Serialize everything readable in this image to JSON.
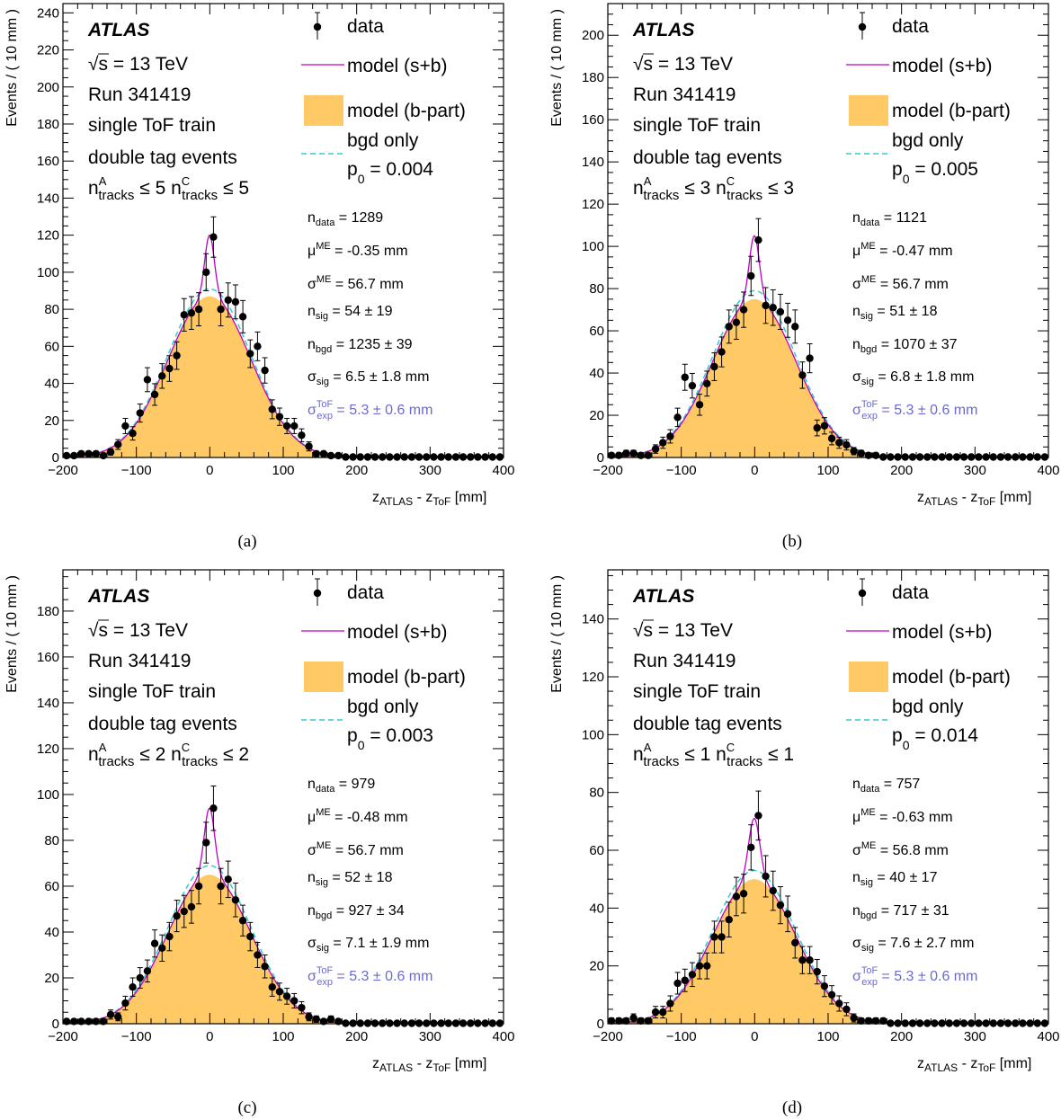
{
  "labels": {
    "atlas": "ATLAS",
    "energy_sqrt": "√",
    "energy_rest": "s = 13 TeV",
    "run": "Run 341419",
    "train": "single ToF train",
    "tag": "double tag events",
    "ylabel": "Events / ( 10 mm )",
    "xlabel_z1": "z",
    "xlabel_sub1": "ATLAS",
    "xlabel_mid": " - z",
    "xlabel_sub2": "ToF",
    "xlabel_unit": " [mm]",
    "legend_data": "data",
    "legend_sb": "model (s+b)",
    "legend_bpart": "model (b-part)",
    "legend_bgd": "bgd only",
    "p0_sym": "p",
    "p0_sub": "0",
    "ntrk_n": "n",
    "ntrk_supA": "A",
    "ntrk_supC": "C",
    "ntrk_sub": "tracks",
    "leq": "≤",
    "n_sym": "n",
    "mu_sym": "μ",
    "sigma_sym": "σ",
    "sub_data": "data",
    "sup_me": "ME",
    "sub_sig": "sig",
    "sub_bgd": "bgd",
    "sup_tof": "ToF",
    "sub_exp": "exp",
    "eq": "=",
    "pm": "±",
    "mm": "mm"
  },
  "colors": {
    "fill_bpart": "#ffc966",
    "line_sb": "#c000c0",
    "line_bgd": "#33cccc",
    "tof_text": "#6a6ad2"
  },
  "chart_data": [
    {
      "type": "scatter",
      "caption": "(a)",
      "xlim": [
        -200,
        400
      ],
      "ylim": [
        0,
        245
      ],
      "yticks": [
        0,
        20,
        40,
        60,
        80,
        100,
        120,
        140,
        160,
        180,
        200,
        220,
        240
      ],
      "xticks": [
        -200,
        -100,
        0,
        100,
        200,
        300,
        400
      ],
      "n_tracks": "5",
      "p0": "0.004",
      "stats": {
        "n_data": "1289",
        "mu_me": "-0.35",
        "sigma_me": "56.7",
        "n_sig": "54",
        "n_sig_err": "19",
        "n_bgd": "1235",
        "n_bgd_err": "39",
        "sigma_sig": "6.5",
        "sigma_sig_err": "1.8",
        "sigma_tof": "5.3",
        "sigma_tof_err": "0.6"
      },
      "model": {
        "mu": -0.35,
        "bgd_sigma": 56.7,
        "bgd_amp": 87,
        "sig_sigma": 6.5,
        "sig_amp": 33,
        "bgd_only_amp": 91
      },
      "points": [
        [
          -195,
          1
        ],
        [
          -185,
          1
        ],
        [
          -175,
          2
        ],
        [
          -165,
          2
        ],
        [
          -155,
          2
        ],
        [
          -145,
          1
        ],
        [
          -135,
          3
        ],
        [
          -125,
          7
        ],
        [
          -115,
          17
        ],
        [
          -105,
          13
        ],
        [
          -95,
          24
        ],
        [
          -85,
          42
        ],
        [
          -75,
          34
        ],
        [
          -65,
          44
        ],
        [
          -55,
          48
        ],
        [
          -45,
          55
        ],
        [
          -35,
          77
        ],
        [
          -25,
          78
        ],
        [
          -15,
          80
        ],
        [
          -5,
          100
        ],
        [
          5,
          119
        ],
        [
          15,
          80
        ],
        [
          25,
          85
        ],
        [
          35,
          84
        ],
        [
          45,
          76
        ],
        [
          55,
          56
        ],
        [
          65,
          60
        ],
        [
          75,
          47
        ],
        [
          85,
          26
        ],
        [
          95,
          22
        ],
        [
          105,
          17
        ],
        [
          115,
          17
        ],
        [
          125,
          12
        ],
        [
          135,
          6
        ],
        [
          145,
          2
        ],
        [
          155,
          2
        ],
        [
          165,
          1
        ],
        [
          175,
          1
        ],
        [
          185,
          0
        ],
        [
          195,
          0
        ],
        [
          205,
          0
        ],
        [
          215,
          0
        ],
        [
          225,
          0
        ],
        [
          235,
          0
        ],
        [
          245,
          0
        ],
        [
          255,
          0
        ],
        [
          265,
          0
        ],
        [
          275,
          0
        ],
        [
          285,
          0
        ],
        [
          295,
          0
        ],
        [
          305,
          0
        ],
        [
          315,
          0
        ],
        [
          325,
          0
        ],
        [
          335,
          0
        ],
        [
          345,
          0
        ],
        [
          355,
          0
        ],
        [
          365,
          0
        ],
        [
          375,
          0
        ],
        [
          385,
          0
        ],
        [
          395,
          0
        ]
      ]
    },
    {
      "type": "scatter",
      "caption": "(b)",
      "xlim": [
        -200,
        400
      ],
      "ylim": [
        0,
        215
      ],
      "yticks": [
        0,
        20,
        40,
        60,
        80,
        100,
        120,
        140,
        160,
        180,
        200
      ],
      "xticks": [
        -200,
        -100,
        0,
        100,
        200,
        300,
        400
      ],
      "n_tracks": "3",
      "p0": "0.005",
      "stats": {
        "n_data": "1121",
        "mu_me": "-0.47",
        "sigma_me": "56.7",
        "n_sig": "51",
        "n_sig_err": "18",
        "n_bgd": "1070",
        "n_bgd_err": "37",
        "sigma_sig": "6.8",
        "sigma_sig_err": "1.8",
        "sigma_tof": "5.3",
        "sigma_tof_err": "0.6"
      },
      "model": {
        "mu": -0.47,
        "bgd_sigma": 56.7,
        "bgd_amp": 75,
        "sig_sigma": 6.8,
        "sig_amp": 30,
        "bgd_only_amp": 79
      },
      "points": [
        [
          -195,
          1
        ],
        [
          -185,
          1
        ],
        [
          -175,
          2
        ],
        [
          -165,
          2
        ],
        [
          -155,
          1
        ],
        [
          -145,
          1
        ],
        [
          -135,
          4
        ],
        [
          -125,
          7
        ],
        [
          -115,
          10
        ],
        [
          -105,
          19
        ],
        [
          -95,
          38
        ],
        [
          -85,
          34
        ],
        [
          -75,
          25
        ],
        [
          -65,
          35
        ],
        [
          -55,
          43
        ],
        [
          -45,
          50
        ],
        [
          -35,
          62
        ],
        [
          -25,
          64
        ],
        [
          -15,
          70
        ],
        [
          -5,
          86
        ],
        [
          5,
          103
        ],
        [
          15,
          72
        ],
        [
          25,
          71
        ],
        [
          35,
          69
        ],
        [
          45,
          65
        ],
        [
          55,
          62
        ],
        [
          65,
          39
        ],
        [
          75,
          47
        ],
        [
          85,
          14
        ],
        [
          95,
          15
        ],
        [
          105,
          9
        ],
        [
          115,
          7
        ],
        [
          125,
          6
        ],
        [
          135,
          3
        ],
        [
          145,
          2
        ],
        [
          155,
          1
        ],
        [
          165,
          1
        ],
        [
          175,
          0
        ],
        [
          185,
          0
        ],
        [
          195,
          0
        ],
        [
          205,
          0
        ],
        [
          215,
          0
        ],
        [
          225,
          0
        ],
        [
          235,
          0
        ],
        [
          245,
          0
        ],
        [
          255,
          0
        ],
        [
          265,
          0
        ],
        [
          275,
          0
        ],
        [
          285,
          0
        ],
        [
          295,
          0
        ],
        [
          305,
          0
        ],
        [
          315,
          0
        ],
        [
          325,
          0
        ],
        [
          335,
          0
        ],
        [
          345,
          0
        ],
        [
          355,
          0
        ],
        [
          365,
          0
        ],
        [
          375,
          0
        ],
        [
          385,
          0
        ],
        [
          395,
          0
        ]
      ]
    },
    {
      "type": "scatter",
      "caption": "(c)",
      "xlim": [
        -200,
        400
      ],
      "ylim": [
        0,
        198
      ],
      "yticks": [
        0,
        20,
        40,
        60,
        80,
        100,
        120,
        140,
        160,
        180
      ],
      "xticks": [
        -200,
        -100,
        0,
        100,
        200,
        300,
        400
      ],
      "n_tracks": "2",
      "p0": "0.003",
      "stats": {
        "n_data": "979",
        "mu_me": "-0.48",
        "sigma_me": "56.7",
        "n_sig": "52",
        "n_sig_err": "18",
        "n_bgd": "927",
        "n_bgd_err": "34",
        "sigma_sig": "7.1",
        "sigma_sig_err": "1.9",
        "sigma_tof": "5.3",
        "sigma_tof_err": "0.6"
      },
      "model": {
        "mu": -0.48,
        "bgd_sigma": 56.7,
        "bgd_amp": 65,
        "sig_sigma": 7.1,
        "sig_amp": 29,
        "bgd_only_amp": 69
      },
      "points": [
        [
          -195,
          1
        ],
        [
          -185,
          1
        ],
        [
          -175,
          1
        ],
        [
          -165,
          1
        ],
        [
          -155,
          1
        ],
        [
          -145,
          1
        ],
        [
          -135,
          4
        ],
        [
          -125,
          3
        ],
        [
          -115,
          9
        ],
        [
          -105,
          16
        ],
        [
          -95,
          20
        ],
        [
          -85,
          23
        ],
        [
          -75,
          35
        ],
        [
          -65,
          33
        ],
        [
          -55,
          38
        ],
        [
          -45,
          47
        ],
        [
          -35,
          49
        ],
        [
          -25,
          51
        ],
        [
          -15,
          60
        ],
        [
          -5,
          79
        ],
        [
          5,
          94
        ],
        [
          15,
          60
        ],
        [
          25,
          63
        ],
        [
          35,
          54
        ],
        [
          45,
          45
        ],
        [
          55,
          38
        ],
        [
          65,
          30
        ],
        [
          75,
          25
        ],
        [
          85,
          16
        ],
        [
          95,
          14
        ],
        [
          105,
          12
        ],
        [
          115,
          10
        ],
        [
          125,
          7
        ],
        [
          135,
          3
        ],
        [
          145,
          2
        ],
        [
          155,
          1
        ],
        [
          165,
          2
        ],
        [
          175,
          1
        ],
        [
          185,
          0
        ],
        [
          195,
          0
        ],
        [
          205,
          0
        ],
        [
          215,
          0
        ],
        [
          225,
          0
        ],
        [
          235,
          0
        ],
        [
          245,
          0
        ],
        [
          255,
          0
        ],
        [
          265,
          0
        ],
        [
          275,
          0
        ],
        [
          285,
          0
        ],
        [
          295,
          0
        ],
        [
          305,
          0
        ],
        [
          315,
          0
        ],
        [
          325,
          0
        ],
        [
          335,
          0
        ],
        [
          345,
          0
        ],
        [
          355,
          0
        ],
        [
          365,
          0
        ],
        [
          375,
          0
        ],
        [
          385,
          0
        ],
        [
          395,
          0
        ]
      ]
    },
    {
      "type": "scatter",
      "caption": "(d)",
      "xlim": [
        -200,
        400
      ],
      "ylim": [
        0,
        157
      ],
      "yticks": [
        0,
        20,
        40,
        60,
        80,
        100,
        120,
        140
      ],
      "xticks": [
        -200,
        -100,
        0,
        100,
        200,
        300,
        400
      ],
      "n_tracks": "1",
      "p0": "0.014",
      "stats": {
        "n_data": "757",
        "mu_me": "-0.63",
        "sigma_me": "56.8",
        "n_sig": "40",
        "n_sig_err": "17",
        "n_bgd": "717",
        "n_bgd_err": "31",
        "sigma_sig": "7.6",
        "sigma_sig_err": "2.7",
        "sigma_tof": "5.3",
        "sigma_tof_err": "0.6"
      },
      "model": {
        "mu": -0.63,
        "bgd_sigma": 56.8,
        "bgd_amp": 50,
        "sig_sigma": 7.6,
        "sig_amp": 21,
        "bgd_only_amp": 53
      },
      "points": [
        [
          -195,
          1
        ],
        [
          -185,
          1
        ],
        [
          -175,
          1
        ],
        [
          -165,
          2
        ],
        [
          -155,
          1
        ],
        [
          -145,
          1
        ],
        [
          -135,
          4
        ],
        [
          -125,
          4
        ],
        [
          -115,
          7
        ],
        [
          -105,
          14
        ],
        [
          -95,
          15
        ],
        [
          -85,
          17
        ],
        [
          -75,
          20
        ],
        [
          -65,
          20
        ],
        [
          -55,
          30
        ],
        [
          -45,
          30
        ],
        [
          -35,
          36
        ],
        [
          -25,
          44
        ],
        [
          -15,
          45
        ],
        [
          -5,
          61
        ],
        [
          5,
          72
        ],
        [
          15,
          51
        ],
        [
          25,
          46
        ],
        [
          35,
          41
        ],
        [
          45,
          38
        ],
        [
          55,
          28
        ],
        [
          65,
          22
        ],
        [
          75,
          22
        ],
        [
          85,
          18
        ],
        [
          95,
          13
        ],
        [
          105,
          10
        ],
        [
          115,
          7
        ],
        [
          125,
          5
        ],
        [
          135,
          2
        ],
        [
          145,
          1
        ],
        [
          155,
          1
        ],
        [
          165,
          1
        ],
        [
          175,
          1
        ],
        [
          185,
          0
        ],
        [
          195,
          0
        ],
        [
          205,
          0
        ],
        [
          215,
          0
        ],
        [
          225,
          0
        ],
        [
          235,
          0
        ],
        [
          245,
          0
        ],
        [
          255,
          0
        ],
        [
          265,
          0
        ],
        [
          275,
          0
        ],
        [
          285,
          0
        ],
        [
          295,
          0
        ],
        [
          305,
          0
        ],
        [
          315,
          0
        ],
        [
          325,
          0
        ],
        [
          335,
          0
        ],
        [
          345,
          0
        ],
        [
          355,
          0
        ],
        [
          365,
          0
        ],
        [
          375,
          0
        ],
        [
          385,
          0
        ],
        [
          395,
          0
        ]
      ]
    }
  ]
}
